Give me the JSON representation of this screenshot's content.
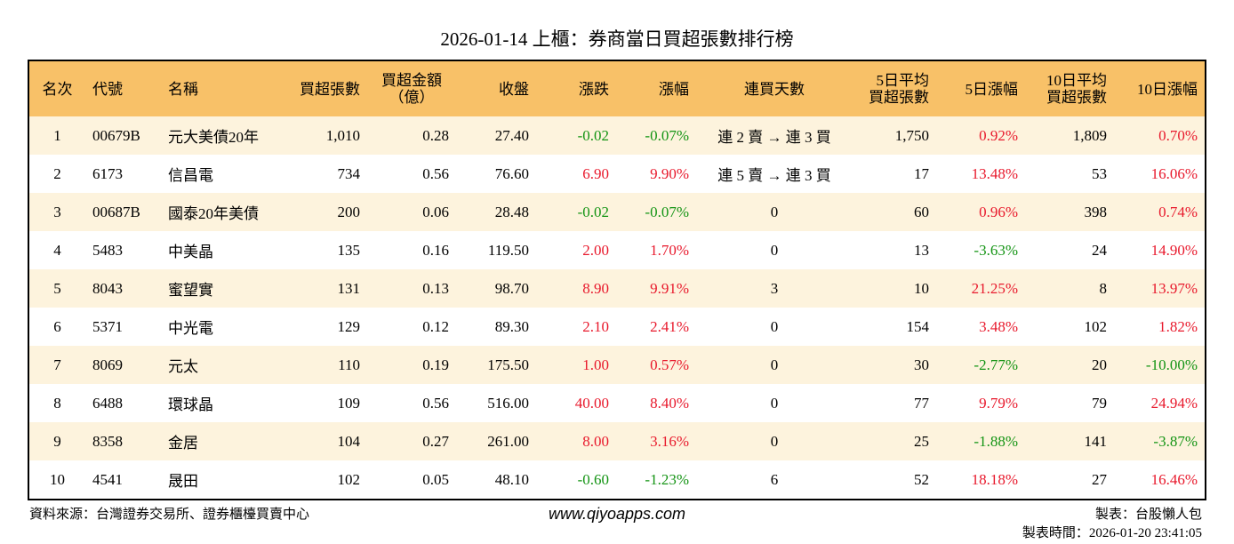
{
  "title": "2026-01-14 上櫃：券商當日買超張數排行榜",
  "table": {
    "header": [
      "名次",
      "代號",
      "名稱",
      "買超張數",
      "買超金額\n（億）",
      "收盤",
      "漲跌",
      "漲幅",
      "連買天數",
      "5日平均\n買超張數",
      "5日漲幅",
      "10日平均\n買超張數",
      "10日漲幅"
    ],
    "rows": [
      [
        "1",
        "00679B",
        "元大美債20年",
        "1,010",
        "0.28",
        "27.40",
        "-0.02",
        "-0.07%",
        "連 2 賣 → 連 3 買",
        "1,750",
        "0.92%",
        "1,809",
        "0.70%"
      ],
      [
        "2",
        "6173",
        "信昌電",
        "734",
        "0.56",
        "76.60",
        "6.90",
        "9.90%",
        "連 5 賣 → 連 3 買",
        "17",
        "13.48%",
        "53",
        "16.06%"
      ],
      [
        "3",
        "00687B",
        "國泰20年美債",
        "200",
        "0.06",
        "28.48",
        "-0.02",
        "-0.07%",
        "0",
        "60",
        "0.96%",
        "398",
        "0.74%"
      ],
      [
        "4",
        "5483",
        "中美晶",
        "135",
        "0.16",
        "119.50",
        "2.00",
        "1.70%",
        "0",
        "13",
        "-3.63%",
        "24",
        "14.90%"
      ],
      [
        "5",
        "8043",
        "蜜望實",
        "131",
        "0.13",
        "98.70",
        "8.90",
        "9.91%",
        "3",
        "10",
        "21.25%",
        "8",
        "13.97%"
      ],
      [
        "6",
        "5371",
        "中光電",
        "129",
        "0.12",
        "89.30",
        "2.10",
        "2.41%",
        "0",
        "154",
        "3.48%",
        "102",
        "1.82%"
      ],
      [
        "7",
        "8069",
        "元太",
        "110",
        "0.19",
        "175.50",
        "1.00",
        "0.57%",
        "0",
        "30",
        "-2.77%",
        "20",
        "-10.00%"
      ],
      [
        "8",
        "6488",
        "環球晶",
        "109",
        "0.56",
        "516.00",
        "40.00",
        "8.40%",
        "0",
        "77",
        "9.79%",
        "79",
        "24.94%"
      ],
      [
        "9",
        "8358",
        "金居",
        "104",
        "0.27",
        "261.00",
        "8.00",
        "3.16%",
        "0",
        "25",
        "-1.88%",
        "141",
        "-3.87%"
      ],
      [
        "10",
        "4541",
        "晟田",
        "102",
        "0.05",
        "48.10",
        "-0.60",
        "-1.23%",
        "6",
        "52",
        "18.18%",
        "27",
        "16.46%"
      ]
    ]
  },
  "footer": {
    "source": "資料來源：台灣證券交易所、證券櫃檯買賣中心",
    "site": "www.qiyoapps.com",
    "author": "製表：台股懶人包",
    "time": "製表時間：2026-01-20 23:41:05"
  }
}
